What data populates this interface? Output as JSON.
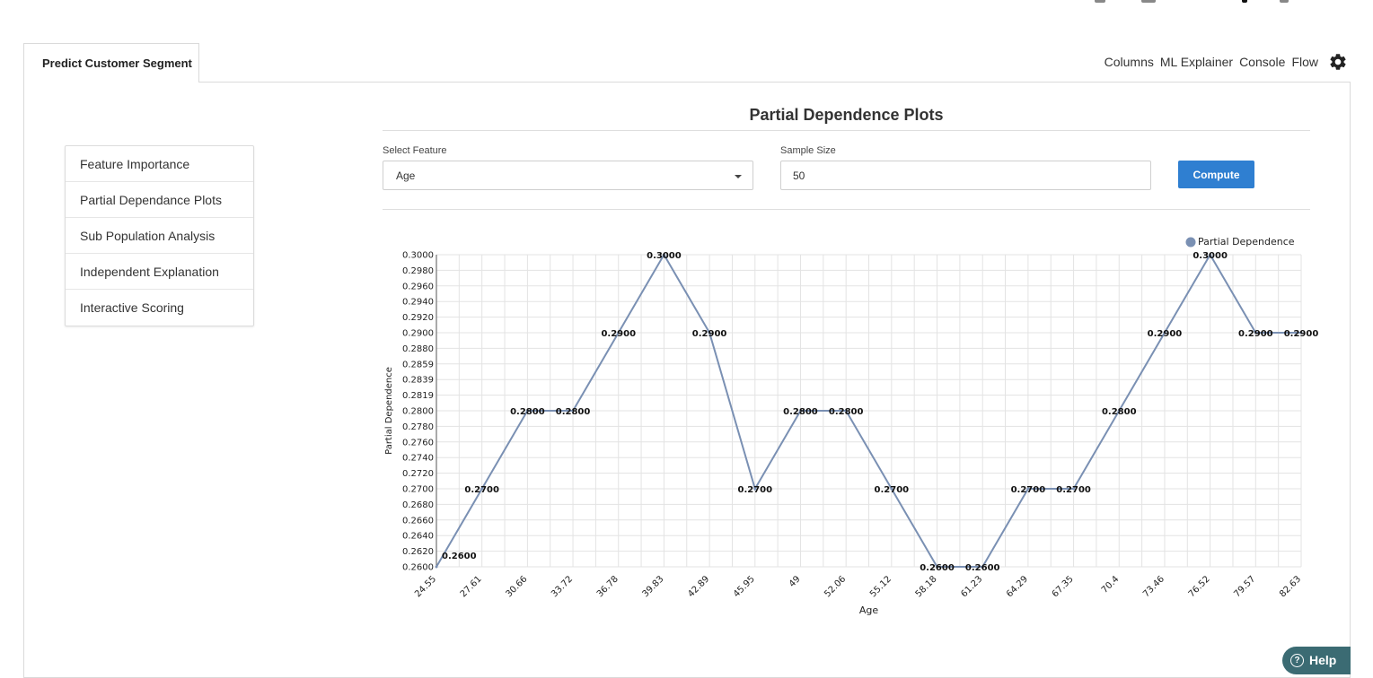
{
  "tab": {
    "label": "Predict Customer Segment"
  },
  "topnav": {
    "columns": "Columns",
    "ml_explainer": "ML Explainer",
    "console": "Console",
    "flow": "Flow",
    "settings_icon": "gear-icon"
  },
  "sidebar": {
    "items": [
      {
        "label": "Feature Importance"
      },
      {
        "label": "Partial Dependance Plots"
      },
      {
        "label": "Sub Population Analysis"
      },
      {
        "label": "Independent Explanation"
      },
      {
        "label": "Interactive Scoring"
      }
    ]
  },
  "main": {
    "title": "Partial Dependence Plots",
    "select_feature_label": "Select Feature",
    "selected_feature": "Age",
    "sample_size_label": "Sample Size",
    "sample_size_value": "50",
    "compute_label": "Compute"
  },
  "help": {
    "label": "Help",
    "icon": "question-circle-icon"
  },
  "colors": {
    "accent": "#2f7fd1",
    "line": "#7a90b3",
    "help_bg": "#3b6b73"
  },
  "chart_data": {
    "type": "line",
    "xlabel": "Age",
    "ylabel": "Partial Dependence",
    "legend": [
      "Partial Dependence"
    ],
    "legend_position": "top-right",
    "grid": true,
    "x": [
      "24.55",
      "27.61",
      "30.66",
      "33.72",
      "36.78",
      "39.83",
      "42.89",
      "45.95",
      "49",
      "52.06",
      "55.12",
      "58.18",
      "61.23",
      "64.29",
      "67.35",
      "70.4",
      "73.46",
      "76.52",
      "79.57",
      "82.63"
    ],
    "y_ticks": [
      "0.2600",
      "0.2620",
      "0.2640",
      "0.2660",
      "0.2680",
      "0.2700",
      "0.2720",
      "0.2740",
      "0.2760",
      "0.2780",
      "0.2800",
      "0.2819",
      "0.2839",
      "0.2859",
      "0.2880",
      "0.2900",
      "0.2920",
      "0.2940",
      "0.2960",
      "0.2980",
      "0.3000"
    ],
    "ylim": [
      0.26,
      0.3
    ],
    "series": [
      {
        "name": "Partial Dependence",
        "values": [
          0.26,
          0.27,
          0.28,
          0.28,
          0.29,
          0.3,
          0.29,
          0.27,
          0.28,
          0.28,
          0.27,
          0.26,
          0.26,
          0.27,
          0.27,
          0.28,
          0.29,
          0.3,
          0.29,
          0.29
        ],
        "labels": [
          "0.2600",
          "0.2700",
          "0.2800",
          "0.2800",
          "0.2900",
          "0.3000",
          "0.2900",
          "0.2700",
          "0.2800",
          "0.2800",
          "0.2700",
          "0.2600",
          "0.2600",
          "0.2700",
          "0.2700",
          "0.2800",
          "0.2900",
          "0.3000",
          "0.2900",
          "0.2900"
        ]
      }
    ]
  }
}
